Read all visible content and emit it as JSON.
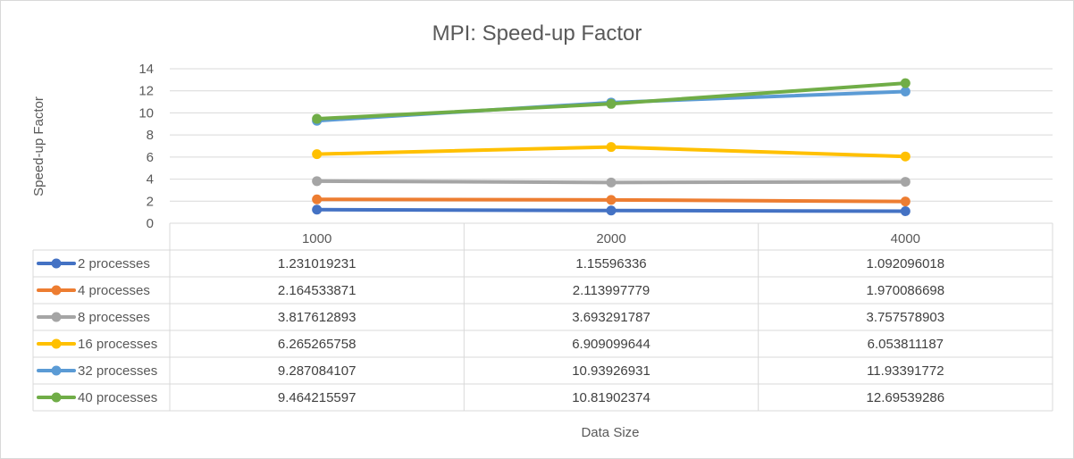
{
  "chart_data": {
    "type": "line",
    "title": "MPI: Speed-up Factor",
    "xlabel": "Data Size",
    "ylabel": "Speed-up Factor",
    "categories": [
      "1000",
      "2000",
      "4000"
    ],
    "ylim": [
      0,
      14
    ],
    "yticks": [
      0,
      2,
      4,
      6,
      8,
      10,
      12,
      14
    ],
    "grid": true,
    "legend": "data-table-left",
    "series": [
      {
        "name": "2 processes",
        "color": "#4472c4",
        "values": [
          1.231019231,
          1.15596336,
          1.092096018
        ]
      },
      {
        "name": "4 processes",
        "color": "#ed7d31",
        "values": [
          2.164533871,
          2.113997779,
          1.970086698
        ]
      },
      {
        "name": "8 processes",
        "color": "#a5a5a5",
        "values": [
          3.817612893,
          3.693291787,
          3.757578903
        ]
      },
      {
        "name": "16 processes",
        "color": "#ffc000",
        "values": [
          6.265265758,
          6.909099644,
          6.053811187
        ]
      },
      {
        "name": "32 processes",
        "color": "#5b9bd5",
        "values": [
          9.287084107,
          10.93926931,
          11.93391772
        ]
      },
      {
        "name": "40 processes",
        "color": "#70ad47",
        "values": [
          9.464215597,
          10.81902374,
          12.69539286
        ]
      }
    ],
    "table_cells": [
      [
        "1.231019231",
        "1.15596336",
        "1.092096018"
      ],
      [
        "2.164533871",
        "2.113997779",
        "1.970086698"
      ],
      [
        "3.817612893",
        "3.693291787",
        "3.757578903"
      ],
      [
        "6.265265758",
        "6.909099644",
        "6.053811187"
      ],
      [
        "9.287084107",
        "10.93926931",
        "11.93391772"
      ],
      [
        "9.464215597",
        "10.81902374",
        "12.69539286"
      ]
    ]
  }
}
